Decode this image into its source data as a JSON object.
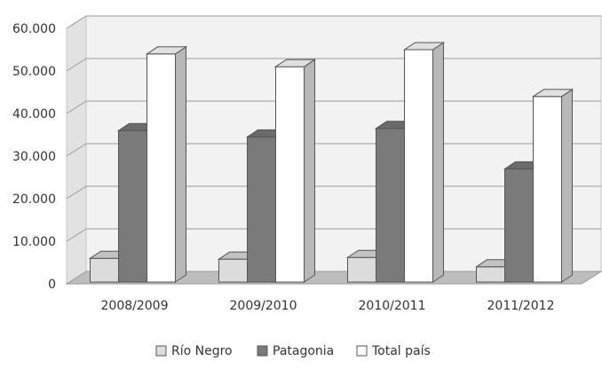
{
  "chart_data": {
    "type": "bar",
    "categories": [
      "2008/2009",
      "2009/2010",
      "2010/2011",
      "2011/2012"
    ],
    "series": [
      {
        "name": "Río Negro",
        "values": [
          6000,
          5800,
          6200,
          4000
        ],
        "color": "#dcdcdc"
      },
      {
        "name": "Patagonia",
        "values": [
          36000,
          34500,
          36500,
          27000
        ],
        "color": "#7a7a7a"
      },
      {
        "name": "Total país",
        "values": [
          54000,
          51000,
          55000,
          44000
        ],
        "color": "#ffffff"
      }
    ],
    "y_ticks": [
      "0",
      "10.000",
      "20.000",
      "30.000",
      "40.000",
      "50.000",
      "60.000"
    ],
    "ylim": [
      0,
      60000
    ],
    "grid": true,
    "style": "3d-clustered-column",
    "legend_position": "bottom",
    "title": "",
    "xlabel": "",
    "ylabel": ""
  }
}
